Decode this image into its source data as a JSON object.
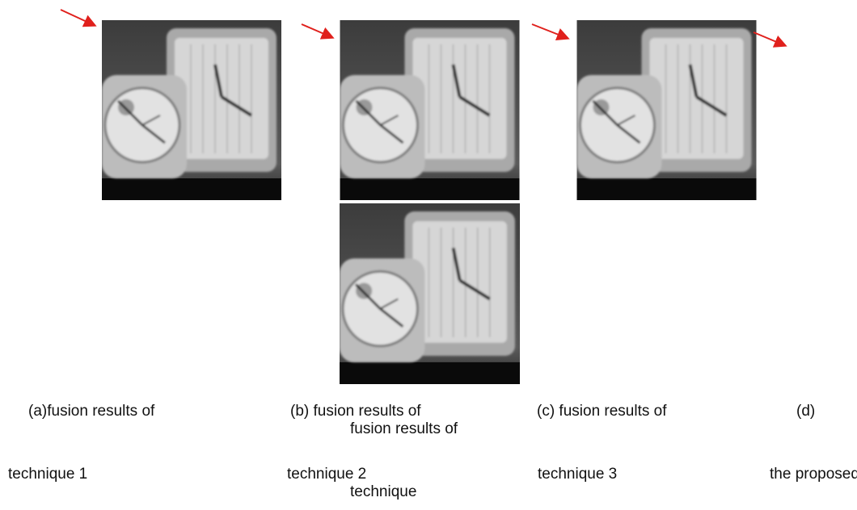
{
  "figures": [
    {
      "caption": [
        "(a)fusion results of",
        "technique 1"
      ]
    },
    {
      "caption": [
        "(b) fusion results of",
        "technique 2"
      ]
    },
    {
      "caption": [
        "(c) fusion results of",
        "technique 3"
      ]
    },
    {
      "caption": [
        "(d)",
        "fusion results of",
        "the proposed",
        "technique"
      ]
    }
  ]
}
